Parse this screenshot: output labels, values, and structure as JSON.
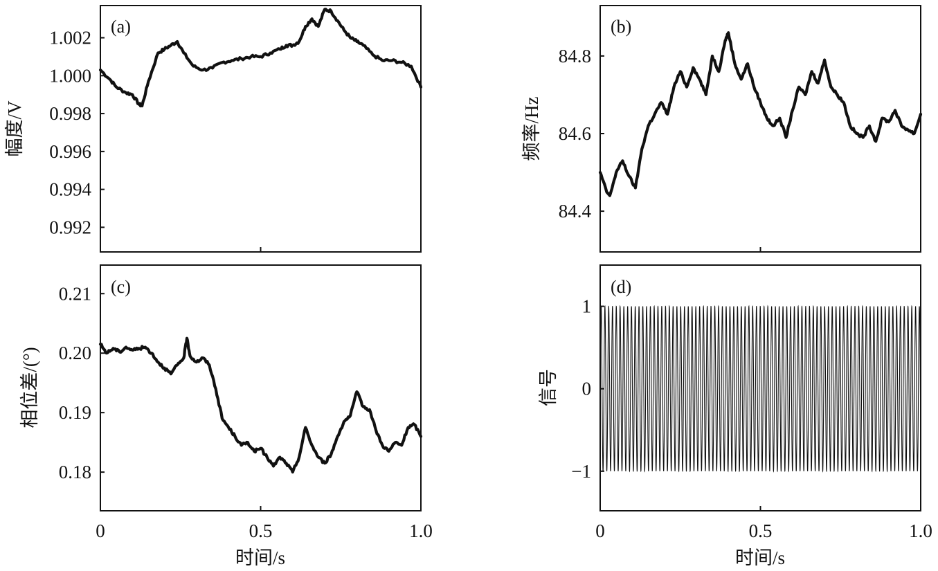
{
  "chart_data": [
    {
      "id": "a",
      "type": "line",
      "panel_label": "(a)",
      "xlabel": "",
      "ylabel": "幅度/V",
      "xlim": [
        0,
        1.0
      ],
      "ylim": [
        0.9907,
        1.0037
      ],
      "xticks": [
        0,
        0.5,
        1.0
      ],
      "xtick_labels": [],
      "yticks": [
        0.992,
        0.994,
        0.996,
        0.998,
        1.0,
        1.002
      ],
      "ytick_labels": [
        "0.992",
        "0.994",
        "0.996",
        "0.998",
        "1.000",
        "1.002"
      ],
      "grid": false,
      "series": [
        {
          "x": [
            0,
            0.03,
            0.05,
            0.08,
            0.1,
            0.12,
            0.13,
            0.15,
            0.18,
            0.2,
            0.22,
            0.24,
            0.26,
            0.29,
            0.32,
            0.35,
            0.38,
            0.41,
            0.44,
            0.47,
            0.5,
            0.53,
            0.56,
            0.58,
            0.6,
            0.62,
            0.64,
            0.66,
            0.68,
            0.7,
            0.72,
            0.74,
            0.76,
            0.78,
            0.8,
            0.82,
            0.85,
            0.88,
            0.91,
            0.94,
            0.97,
            1.0
          ],
          "y": [
            1.0003,
            0.9998,
            0.9994,
            0.9991,
            0.999,
            0.9985,
            0.9984,
            0.9997,
            1.0012,
            1.0014,
            1.0016,
            1.0018,
            1.0012,
            1.0005,
            1.0003,
            1.0004,
            1.0007,
            1.0008,
            1.0009,
            1.001,
            1.001,
            1.0012,
            1.0014,
            1.0016,
            1.0016,
            1.0018,
            1.0026,
            1.003,
            1.0026,
            1.0035,
            1.0034,
            1.0029,
            1.0024,
            1.002,
            1.0018,
            1.0016,
            1.0011,
            1.0008,
            1.0008,
            1.0007,
            1.0005,
            0.9994
          ]
        }
      ]
    },
    {
      "id": "b",
      "type": "line",
      "panel_label": "(b)",
      "xlabel": "",
      "ylabel": "频率/Hz",
      "xlim": [
        0,
        1.0
      ],
      "ylim": [
        84.295,
        84.93
      ],
      "xticks": [
        0,
        0.5,
        1.0
      ],
      "xtick_labels": [],
      "yticks": [
        84.4,
        84.6,
        84.8
      ],
      "ytick_labels": [
        "84.4",
        "84.6",
        "84.8"
      ],
      "grid": false,
      "series": [
        {
          "x": [
            0,
            0.02,
            0.03,
            0.05,
            0.07,
            0.09,
            0.11,
            0.13,
            0.15,
            0.17,
            0.19,
            0.21,
            0.23,
            0.25,
            0.27,
            0.29,
            0.31,
            0.33,
            0.35,
            0.37,
            0.39,
            0.4,
            0.42,
            0.44,
            0.46,
            0.48,
            0.5,
            0.52,
            0.54,
            0.56,
            0.58,
            0.6,
            0.62,
            0.64,
            0.66,
            0.68,
            0.7,
            0.72,
            0.74,
            0.76,
            0.78,
            0.8,
            0.82,
            0.84,
            0.86,
            0.88,
            0.9,
            0.92,
            0.94,
            0.96,
            0.98,
            1.0
          ],
          "y": [
            84.5,
            84.45,
            84.44,
            84.5,
            84.53,
            84.49,
            84.46,
            84.56,
            84.62,
            84.65,
            84.68,
            84.65,
            84.72,
            84.76,
            84.72,
            84.77,
            84.74,
            84.7,
            84.8,
            84.76,
            84.84,
            84.86,
            84.78,
            84.74,
            84.78,
            84.72,
            84.68,
            84.64,
            84.62,
            84.64,
            84.59,
            84.66,
            84.72,
            84.7,
            84.76,
            84.73,
            84.79,
            84.72,
            84.7,
            84.68,
            84.62,
            84.6,
            84.59,
            84.62,
            84.58,
            84.64,
            84.63,
            84.66,
            84.62,
            84.61,
            84.6,
            84.65
          ]
        }
      ]
    },
    {
      "id": "c",
      "type": "line",
      "panel_label": "(c)",
      "xlabel": "时间/s",
      "ylabel": "相位差/(°)",
      "xlim": [
        0,
        1.0
      ],
      "ylim": [
        0.1735,
        0.2148
      ],
      "xticks": [
        0,
        0.5,
        1.0
      ],
      "xtick_labels": [
        "0",
        "0.5",
        "1.0"
      ],
      "yticks": [
        0.18,
        0.19,
        0.2,
        0.21
      ],
      "ytick_labels": [
        "0.18",
        "0.19",
        "0.20",
        "0.21"
      ],
      "grid": false,
      "series": [
        {
          "x": [
            0,
            0.02,
            0.04,
            0.06,
            0.08,
            0.1,
            0.12,
            0.14,
            0.16,
            0.18,
            0.2,
            0.22,
            0.24,
            0.26,
            0.27,
            0.28,
            0.3,
            0.32,
            0.34,
            0.36,
            0.38,
            0.4,
            0.42,
            0.44,
            0.46,
            0.48,
            0.5,
            0.52,
            0.54,
            0.56,
            0.58,
            0.6,
            0.62,
            0.64,
            0.66,
            0.68,
            0.7,
            0.72,
            0.74,
            0.76,
            0.78,
            0.8,
            0.82,
            0.84,
            0.86,
            0.88,
            0.9,
            0.92,
            0.94,
            0.96,
            0.98,
            1.0
          ],
          "y": [
            0.2015,
            0.2,
            0.2008,
            0.2002,
            0.201,
            0.2005,
            0.2008,
            0.201,
            0.2,
            0.1985,
            0.1975,
            0.1965,
            0.198,
            0.1992,
            0.2025,
            0.1995,
            0.1985,
            0.1992,
            0.198,
            0.194,
            0.189,
            0.1875,
            0.186,
            0.1845,
            0.185,
            0.1835,
            0.184,
            0.1825,
            0.181,
            0.1825,
            0.1815,
            0.18,
            0.1825,
            0.1875,
            0.1845,
            0.1825,
            0.1815,
            0.183,
            0.186,
            0.1885,
            0.1895,
            0.1935,
            0.191,
            0.1905,
            0.187,
            0.1845,
            0.1835,
            0.185,
            0.1845,
            0.1875,
            0.188,
            0.186
          ]
        }
      ]
    },
    {
      "id": "d",
      "type": "line",
      "panel_label": "(d)",
      "xlabel": "时间/s",
      "ylabel": "信号",
      "xlim": [
        0,
        1.0
      ],
      "ylim": [
        -1.48,
        1.5
      ],
      "xticks": [
        0,
        0.5,
        1.0
      ],
      "xtick_labels": [
        "0",
        "0.5",
        "1.0"
      ],
      "yticks": [
        -1,
        0,
        1
      ],
      "ytick_labels": [
        "−1",
        "0",
        "1"
      ],
      "grid": false,
      "signal": {
        "waveform": "sine",
        "amplitude": 1,
        "frequency_hz": 84.6
      }
    }
  ]
}
